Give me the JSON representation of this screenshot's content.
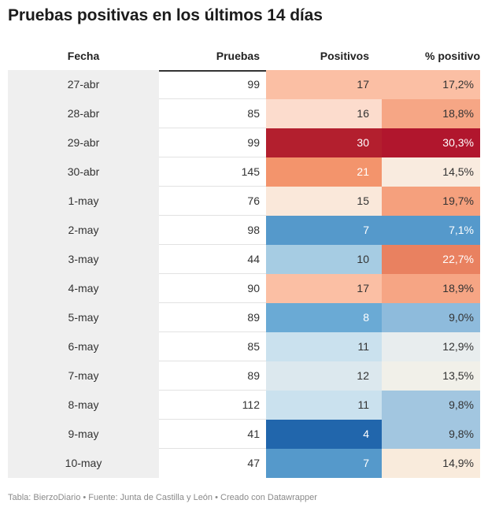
{
  "title": "Pruebas positivas en los últimos 14 días",
  "footer": "Tabla: BierzoDiario • Fuente: Junta de Castilla y León • Creado con Datawrapper",
  "chart_data": {
    "type": "table",
    "columns": [
      "Fecha",
      "Pruebas",
      "Positivos",
      "% positivo"
    ],
    "rows": [
      {
        "fecha": "27-abr",
        "pruebas": "99",
        "positivos": "17",
        "pct": "17,2%",
        "pos_color": "#fbbfa4",
        "pct_color": "#fbbfa4",
        "pos_text": "#333333",
        "pct_text": "#333333"
      },
      {
        "fecha": "28-abr",
        "pruebas": "85",
        "positivos": "16",
        "pct": "18,8%",
        "pos_color": "#fcdccd",
        "pct_color": "#f6a685",
        "pos_text": "#333333",
        "pct_text": "#333333"
      },
      {
        "fecha": "29-abr",
        "pruebas": "99",
        "positivos": "30",
        "pct": "30,3%",
        "pos_color": "#b31f2e",
        "pct_color": "#b1162d",
        "pos_text": "#ffffff",
        "pct_text": "#ffffff"
      },
      {
        "fecha": "30-abr",
        "pruebas": "145",
        "positivos": "21",
        "pct": "14,5%",
        "pos_color": "#f3946c",
        "pct_color": "#f9ebdf",
        "pos_text": "#ffffff",
        "pct_text": "#333333"
      },
      {
        "fecha": "1-may",
        "pruebas": "76",
        "positivos": "15",
        "pct": "19,7%",
        "pos_color": "#fae8da",
        "pct_color": "#f5a07d",
        "pos_text": "#333333",
        "pct_text": "#333333"
      },
      {
        "fecha": "2-may",
        "pruebas": "98",
        "positivos": "7",
        "pct": "7,1%",
        "pos_color": "#5599cb",
        "pct_color": "#5599cb",
        "pos_text": "#ffffff",
        "pct_text": "#ffffff"
      },
      {
        "fecha": "3-may",
        "pruebas": "44",
        "positivos": "10",
        "pct": "22,7%",
        "pos_color": "#a6cce3",
        "pct_color": "#e98160",
        "pos_text": "#333333",
        "pct_text": "#ffffff"
      },
      {
        "fecha": "4-may",
        "pruebas": "90",
        "positivos": "17",
        "pct": "18,9%",
        "pos_color": "#fbbfa4",
        "pct_color": "#f6a584",
        "pos_text": "#333333",
        "pct_text": "#333333"
      },
      {
        "fecha": "5-may",
        "pruebas": "89",
        "positivos": "8",
        "pct": "9,0%",
        "pos_color": "#6aaad5",
        "pct_color": "#8ebbdc",
        "pos_text": "#ffffff",
        "pct_text": "#333333"
      },
      {
        "fecha": "6-may",
        "pruebas": "85",
        "positivos": "11",
        "pct": "12,9%",
        "pos_color": "#cae1ee",
        "pct_color": "#e8edee",
        "pos_text": "#333333",
        "pct_text": "#333333"
      },
      {
        "fecha": "7-may",
        "pruebas": "89",
        "positivos": "12",
        "pct": "13,5%",
        "pos_color": "#dce8ee",
        "pct_color": "#f1f0e9",
        "pos_text": "#333333",
        "pct_text": "#333333"
      },
      {
        "fecha": "8-may",
        "pruebas": "112",
        "positivos": "11",
        "pct": "9,8%",
        "pos_color": "#cae1ee",
        "pct_color": "#a2c6e0",
        "pos_text": "#333333",
        "pct_text": "#333333"
      },
      {
        "fecha": "9-may",
        "pruebas": "41",
        "positivos": "4",
        "pct": "9,8%",
        "pos_color": "#2166ac",
        "pct_color": "#a2c6e0",
        "pos_text": "#ffffff",
        "pct_text": "#333333"
      },
      {
        "fecha": "10-may",
        "pruebas": "47",
        "positivos": "7",
        "pct": "14,9%",
        "pos_color": "#5599cb",
        "pct_color": "#f9ebdc",
        "pos_text": "#ffffff",
        "pct_text": "#333333"
      }
    ]
  }
}
